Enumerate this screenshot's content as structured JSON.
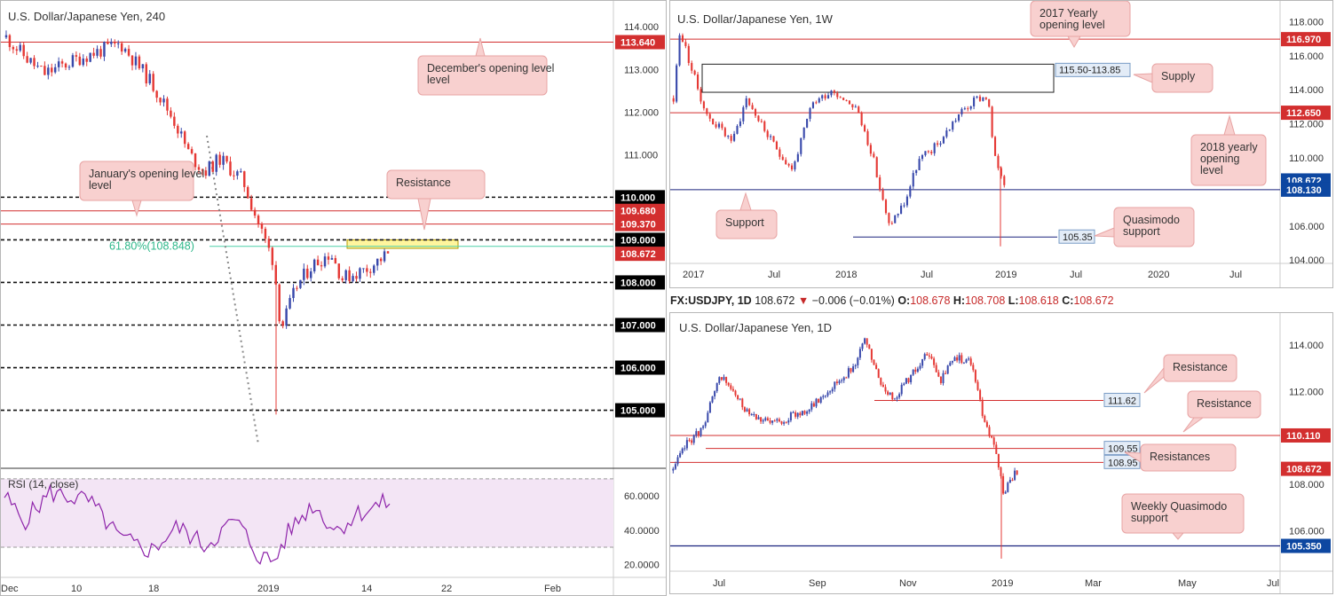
{
  "chart_data": [
    {
      "id": "h4",
      "type": "candlestick",
      "title": "U.S. Dollar/Japanese Yen, 240",
      "ylim": [
        104.2,
        114.4
      ],
      "y_ticks": [
        "114.000",
        "113.000",
        "112.000",
        "111.000",
        "110.000",
        "109.000",
        "108.000",
        "107.000",
        "106.000",
        "105.000"
      ],
      "x_ticks": [
        "Dec",
        "10",
        "18",
        "2019",
        "14",
        "22",
        "Feb"
      ],
      "price_tags": [
        {
          "label": "113.640",
          "value": 113.64,
          "color": "#d32f2f"
        },
        {
          "label": "110.000",
          "value": 110.0,
          "color": "#000000"
        },
        {
          "label": "109.680",
          "value": 109.68,
          "color": "#d32f2f"
        },
        {
          "label": "109.370",
          "value": 109.37,
          "color": "#d32f2f"
        },
        {
          "label": "109.000",
          "value": 109.0,
          "color": "#000000"
        },
        {
          "label": "108.672",
          "value": 108.672,
          "color": "#d32f2f"
        },
        {
          "label": "108.000",
          "value": 108.0,
          "color": "#000000"
        },
        {
          "label": "107.000",
          "value": 107.0,
          "color": "#000000"
        },
        {
          "label": "106.000",
          "value": 106.0,
          "color": "#000000"
        },
        {
          "label": "105.000",
          "value": 105.0,
          "color": "#000000"
        }
      ],
      "fib_label": "61.80%(108.848)",
      "fib_value": 108.848,
      "resistance_zone": [
        108.8,
        109.0
      ],
      "annotations": [
        "December's opening level",
        "January's opening level",
        "Resistance"
      ],
      "rsi": {
        "title": "RSI (14, close)",
        "ylim": [
          15,
          72
        ],
        "y_ticks": [
          "60.0000",
          "40.0000",
          "20.0000"
        ],
        "bands": [
          70,
          30
        ]
      }
    },
    {
      "id": "w1",
      "type": "candlestick",
      "title": "U.S. Dollar/Japanese Yen, 1W",
      "ylim": [
        103.8,
        118.8
      ],
      "y_ticks": [
        "118.000",
        "116.000",
        "114.000",
        "112.000",
        "110.000",
        "106.000",
        "104.000"
      ],
      "x_ticks": [
        "2017",
        "Jul",
        "2018",
        "Jul",
        "2019",
        "Jul",
        "2020",
        "Jul"
      ],
      "price_tags": [
        {
          "label": "116.970",
          "value": 116.97,
          "color": "#d32f2f"
        },
        {
          "label": "112.650",
          "value": 112.65,
          "color": "#d32f2f"
        },
        {
          "label": "108.672",
          "value": 108.672,
          "color": "#0d47a1"
        },
        {
          "label": "108.130",
          "value": 108.13,
          "color": "#0d47a1"
        }
      ],
      "supply_zone_label": "115.50-113.85",
      "supply_zone": [
        113.85,
        115.5
      ],
      "quasimodo_label": "105.35",
      "quasimodo_value": 105.35,
      "annotations": [
        "2017 Yearly opening level",
        "Supply",
        "2018 yearly opening level",
        "Support",
        "Quasimodo support"
      ]
    },
    {
      "id": "d1",
      "type": "candlestick",
      "title": "U.S. Dollar/Japanese Yen, 1D",
      "ylim": [
        104.3,
        115.0
      ],
      "y_ticks": [
        "114.000",
        "112.000",
        "108.000",
        "106.000"
      ],
      "x_ticks": [
        "Jul",
        "Sep",
        "Nov",
        "2019",
        "Mar",
        "May",
        "Jul"
      ],
      "price_tags": [
        {
          "label": "110.110",
          "value": 110.11,
          "color": "#d32f2f"
        },
        {
          "label": "108.672",
          "value": 108.672,
          "color": "#d32f2f"
        },
        {
          "label": "105.350",
          "value": 105.35,
          "color": "#0d47a1"
        }
      ],
      "level_labels": [
        {
          "label": "111.62",
          "value": 111.62
        },
        {
          "label": "109.55",
          "value": 109.55
        },
        {
          "label": "108.95",
          "value": 108.95
        }
      ],
      "annotations": [
        "Resistance",
        "Resistance",
        "Resistances",
        "Weekly Quasimodo support"
      ]
    }
  ],
  "ohlc_strip": {
    "symbol": "FX:USDJPY, 1D",
    "last": "108.672",
    "change": "−0.006 (−0.01%)",
    "o_label": "O:",
    "o": "108.678",
    "h_label": "H:",
    "h": "108.708",
    "l_label": "L:",
    "l": "108.618",
    "c_label": "C:",
    "c": "108.672"
  },
  "colors": {
    "bull": "#3949ab",
    "bear": "#e53935",
    "red_line": "#d32f2f",
    "blue_line": "#1a237e",
    "fib": "#4dd0a8",
    "callout_fill": "#f8d0cf",
    "callout_stroke": "#e7a3a3",
    "zone_yellow": "#fff59d",
    "rsi_fill": "#f3e5f5",
    "rsi_line": "#8e24aa"
  }
}
